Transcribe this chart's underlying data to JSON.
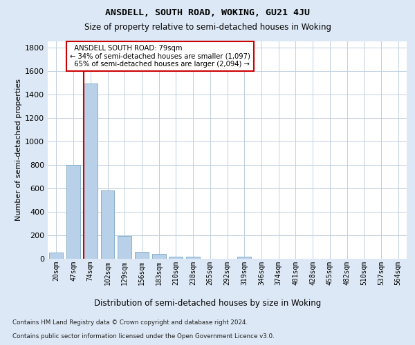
{
  "title": "ANSDELL, SOUTH ROAD, WOKING, GU21 4JU",
  "subtitle": "Size of property relative to semi-detached houses in Woking",
  "xlabel": "Distribution of semi-detached houses by size in Woking",
  "ylabel": "Number of semi-detached properties",
  "categories": [
    "20sqm",
    "47sqm",
    "74sqm",
    "102sqm",
    "129sqm",
    "156sqm",
    "183sqm",
    "210sqm",
    "238sqm",
    "265sqm",
    "292sqm",
    "319sqm",
    "346sqm",
    "374sqm",
    "401sqm",
    "428sqm",
    "455sqm",
    "482sqm",
    "510sqm",
    "537sqm",
    "564sqm"
  ],
  "values": [
    50,
    800,
    1490,
    580,
    195,
    60,
    40,
    20,
    20,
    0,
    0,
    20,
    0,
    0,
    0,
    0,
    0,
    0,
    0,
    0,
    0
  ],
  "bar_color": "#b8d0e8",
  "bar_edge_color": "#7aaaca",
  "highlight_bar_index": 2,
  "property_size": "79sqm",
  "pct_smaller": "34%",
  "n_smaller": "1,097",
  "pct_larger": "65%",
  "n_larger": "2,094",
  "annotation_label": "ANSDELL SOUTH ROAD: 79sqm",
  "ylim": [
    0,
    1850
  ],
  "yticks": [
    0,
    200,
    400,
    600,
    800,
    1000,
    1200,
    1400,
    1600,
    1800
  ],
  "footnote1": "Contains HM Land Registry data © Crown copyright and database right 2024.",
  "footnote2": "Contains public sector information licensed under the Open Government Licence v3.0.",
  "bg_color": "#dce8f5",
  "plot_bg_color": "#ffffff",
  "grid_color": "#c0cfe0",
  "red_color": "#cc0000"
}
